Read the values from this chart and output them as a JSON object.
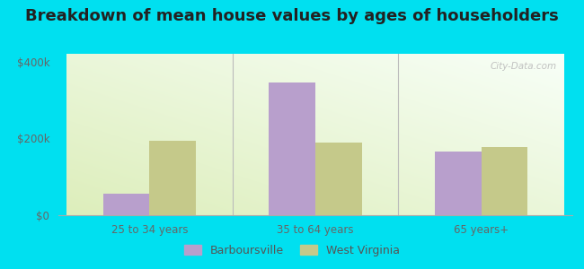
{
  "title": "Breakdown of mean house values by ages of householders",
  "categories": [
    "25 to 34 years",
    "35 to 64 years",
    "65 years+"
  ],
  "barboursville_values": [
    55000,
    345000,
    165000
  ],
  "west_virginia_values": [
    193000,
    190000,
    178000
  ],
  "bar_color_barboursville": "#b89fcc",
  "bar_color_wv": "#c5c98a",
  "ylim": [
    0,
    420000
  ],
  "yticks": [
    0,
    200000,
    400000
  ],
  "ytick_labels": [
    "$0",
    "$200k",
    "$400k"
  ],
  "background_color_outer": "#00e0f0",
  "legend_labels": [
    "Barboursville",
    "West Virginia"
  ],
  "title_fontsize": 13,
  "bar_width": 0.28
}
